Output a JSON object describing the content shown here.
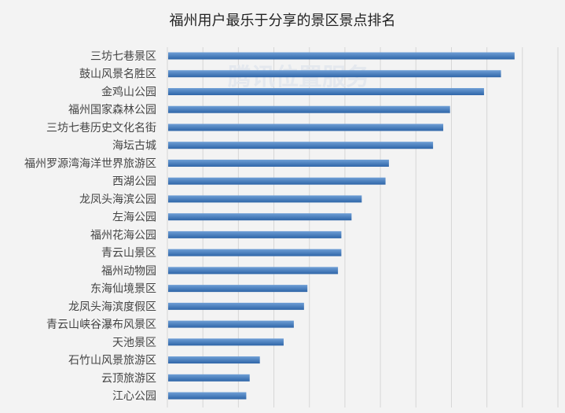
{
  "chart_data": {
    "type": "bar",
    "orientation": "horizontal",
    "title": "福州用户最乐于分享的景区景点排名",
    "watermark": "腾讯位置服务",
    "categories": [
      "三坊七巷景区",
      "鼓山风景名胜区",
      "金鸡山公园",
      "福州国家森林公园",
      "三坊七巷历史文化名街",
      "海坛古城",
      "福州罗源湾海洋世界旅游区",
      "西湖公园",
      "龙凤头海滨公园",
      "左海公园",
      "福州花海公园",
      "青云山景区",
      "福州动物园",
      "东海仙境景区",
      "龙凤头海滨度假区",
      "青云山峡谷瀑布风景区",
      "天池景区",
      "石竹山风景旅游区",
      "云顶旅游区",
      "江心公园"
    ],
    "values": [
      102,
      98,
      93,
      83,
      81,
      78,
      65,
      64,
      57,
      54,
      51,
      51,
      50,
      41,
      40,
      37,
      34,
      27,
      24,
      23
    ],
    "xlim": [
      0,
      115
    ],
    "grid": true,
    "bar_color": "#2e65a8",
    "bar_color_light": "#6f9fd6",
    "gridline_color": "#d6d6d6"
  }
}
